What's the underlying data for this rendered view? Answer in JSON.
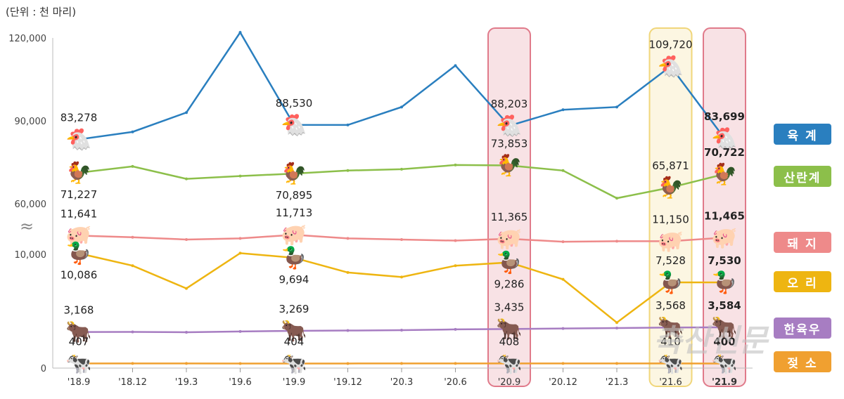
{
  "unit_label": "(단위 : 천 마리)",
  "chart_data": {
    "type": "line",
    "title": "",
    "xlabel": "",
    "ylabel": "",
    "categories": [
      "'18.9",
      "'18.12",
      "'19.3",
      "'19.6",
      "'19.9",
      "'19.12",
      "'20.3",
      "'20.6",
      "'20.9",
      "'20.12",
      "'21.3",
      "'21.6",
      "'21.9"
    ],
    "y_ticks_upper": [
      "120,000",
      "90,000",
      "60,000"
    ],
    "y_ticks_lower": [
      "10,000",
      "0"
    ],
    "axis_break": "≈",
    "series": [
      {
        "name": "육 계",
        "color": "#2a7fbf",
        "values": [
          83278,
          86000,
          93000,
          122000,
          88530,
          88500,
          95000,
          110000,
          88203,
          94000,
          95000,
          109720,
          83699
        ],
        "labels": {
          "0": "83,278",
          "4": "88,530",
          "8": "88,203",
          "11": "109,720",
          "12": "83,699"
        }
      },
      {
        "name": "산란계",
        "color": "#8cbf4a",
        "values": [
          71227,
          73500,
          69000,
          70000,
          70895,
          72000,
          72500,
          74000,
          73853,
          72000,
          62000,
          65871,
          70722
        ],
        "labels": {
          "0": "71,227",
          "4": "70,895",
          "8": "73,853",
          "11": "65,871",
          "12": "70,722"
        }
      },
      {
        "name": "돼 지",
        "color": "#ee8a8a",
        "values": [
          11641,
          11500,
          11300,
          11400,
          11713,
          11400,
          11300,
          11200,
          11365,
          11100,
          11150,
          11150,
          11465
        ],
        "labels": {
          "0": "11,641",
          "4": "11,713",
          "8": "11,365",
          "11": "11,150",
          "12": "11,465"
        }
      },
      {
        "name": "오 리",
        "color": "#eeb511",
        "values": [
          10086,
          9000,
          7000,
          10100,
          9694,
          8400,
          8000,
          9000,
          9286,
          7800,
          4000,
          7528,
          7530
        ],
        "labels": {
          "0": "10,086",
          "4": "9,694",
          "8": "9,286",
          "11": "7,528",
          "12": "7,530"
        }
      },
      {
        "name": "한육우",
        "color": "#a77dc2",
        "values": [
          3168,
          3180,
          3150,
          3220,
          3269,
          3300,
          3330,
          3400,
          3435,
          3480,
          3520,
          3568,
          3584
        ],
        "labels": {
          "0": "3,168",
          "4": "3,269",
          "8": "3,435",
          "11": "3,568",
          "12": "3,584"
        }
      },
      {
        "name": "젖 소",
        "color": "#f0a030",
        "values": [
          407,
          407,
          406,
          405,
          404,
          405,
          406,
          407,
          408,
          408,
          409,
          410,
          400
        ],
        "labels": {
          "0": "407",
          "4": "404",
          "8": "408",
          "11": "410",
          "12": "400"
        }
      }
    ],
    "highlights": [
      {
        "category": "'20.9",
        "color": "#e07a8a"
      },
      {
        "category": "'21.6",
        "color": "#f0d67a"
      },
      {
        "category": "'21.9",
        "color": "#e07a8a"
      }
    ],
    "animals": [
      "chicken-broiler-icon",
      "chicken-layer-icon",
      "pig-icon",
      "duck-icon",
      "cow-icon",
      "dairy-cow-icon"
    ],
    "watermark": "축산신문"
  }
}
